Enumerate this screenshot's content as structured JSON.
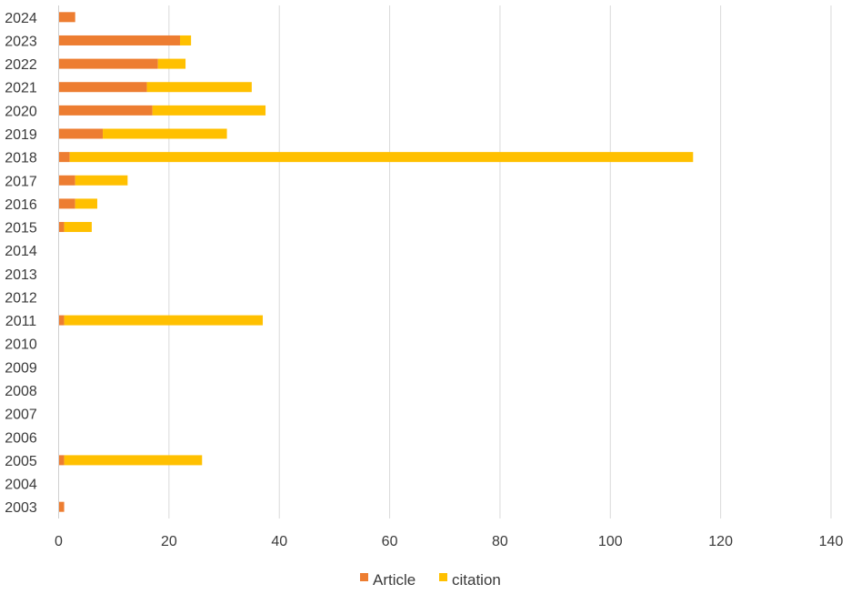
{
  "chart_data": {
    "type": "bar",
    "orientation": "horizontal",
    "stacked": true,
    "categories": [
      "2024",
      "2023",
      "2022",
      "2021",
      "2020",
      "2019",
      "2018",
      "2017",
      "2016",
      "2015",
      "2014",
      "2013",
      "2012",
      "2011",
      "2010",
      "2009",
      "2008",
      "2007",
      "2006",
      "2005",
      "2004",
      "2003"
    ],
    "series": [
      {
        "name": "Article",
        "color": "#ED7D31",
        "values": [
          3,
          22,
          18,
          16,
          17,
          8,
          2,
          3,
          3,
          1,
          0,
          0,
          0,
          1,
          0,
          0,
          0,
          0,
          0,
          1,
          0,
          1
        ]
      },
      {
        "name": "citation",
        "color": "#FFC000",
        "values": [
          0,
          2,
          5,
          19,
          20.5,
          22.5,
          113,
          9.5,
          4,
          5,
          0,
          0,
          0,
          36,
          0,
          0,
          0,
          0,
          0,
          25,
          0,
          0
        ]
      }
    ],
    "xlim": [
      0,
      140
    ],
    "xticks": [
      "0",
      "20",
      "40",
      "60",
      "80",
      "100",
      "120",
      "140"
    ],
    "grid": true,
    "legend_position": "bottom",
    "title": "",
    "xlabel": "",
    "ylabel": ""
  }
}
